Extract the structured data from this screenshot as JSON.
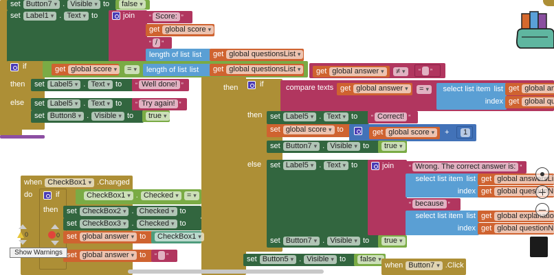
{
  "kw": {
    "set": "set",
    "to": "to",
    "get": "get",
    "dot": ".",
    "list": "list",
    "index": "index",
    "then": "then",
    "else": "else",
    "if": "if",
    "join": "join",
    "when": "when",
    "do": "do",
    "length_of_list": "length of list",
    "select_list_item": "select list item",
    "compare_texts": "compare texts",
    "plus": "+"
  },
  "components": {
    "button7": "Button7",
    "button8": "Button8",
    "button5": "Button5",
    "label1": "Label1",
    "label5": "Label5",
    "checkbox1": "CheckBox1",
    "checkbox2": "CheckBox2",
    "checkbox3": "CheckBox3"
  },
  "props": {
    "visible": "Visible",
    "text": "Text",
    "checked": "Checked",
    "changed": ".Changed",
    "click": ".Click"
  },
  "vars": {
    "score": "global score",
    "questions_list": "global questionsList",
    "answer": "global answer",
    "answers_list_clipped": "global answersList",
    "question_num_clipped": "global questionNum",
    "explanation_clipped": "global explanation",
    "answer_clipped": "global an",
    "qu_clipped": "global qu"
  },
  "values": {
    "false": "false",
    "true": "true",
    "eq": "=",
    "neq": "≠",
    "one": "1"
  },
  "strings": {
    "score": "Score:",
    "slash": "/",
    "well_done": "Well done!",
    "try_again": "Try again!",
    "correct": "Correct!",
    "wrong": "Wrong. The correct answer is:",
    "because": "because",
    "empty": ""
  },
  "warnings": {
    "warning_count": "0",
    "error_count": "0",
    "show_warnings": "Show Warnings"
  },
  "colors": {
    "control": "#ad8f36",
    "component": "#32663f",
    "text": "#b1365f",
    "variable": "#cf6330",
    "list": "#5a9fd4",
    "math": "#4272b8",
    "logic": "#7aab45"
  }
}
